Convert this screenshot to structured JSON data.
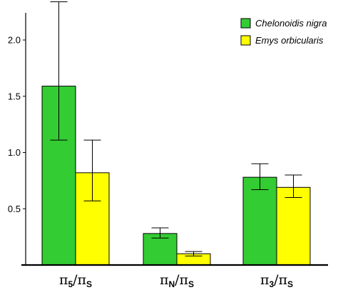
{
  "chart_data": {
    "type": "bar",
    "categories": [
      {
        "main": "π",
        "sub": "5",
        "slash": "/π",
        "sub2": "S"
      },
      {
        "main": "π",
        "sub": "N",
        "slash": "/π",
        "sub2": "S"
      },
      {
        "main": "π",
        "sub": "3",
        "slash": "/π",
        "sub2": "S"
      }
    ],
    "series": [
      {
        "name": "Chelonoidis nigra",
        "color": "#33cc33",
        "values": [
          1.59,
          0.28,
          0.78
        ],
        "err_low": [
          1.11,
          0.24,
          0.67
        ],
        "err_high": [
          2.34,
          0.33,
          0.9
        ]
      },
      {
        "name": "Emys orbicularis",
        "color": "#ffff00",
        "values": [
          0.82,
          0.1,
          0.69
        ],
        "err_low": [
          0.57,
          0.08,
          0.6
        ],
        "err_high": [
          1.11,
          0.12,
          0.8
        ]
      }
    ],
    "yticks": [
      "0.5",
      "1.0",
      "1.5",
      "2.0"
    ],
    "ylim": [
      0,
      2.35
    ],
    "xlabel": "",
    "ylabel": "",
    "title": "",
    "legend_position": "top-right",
    "grid": false
  }
}
